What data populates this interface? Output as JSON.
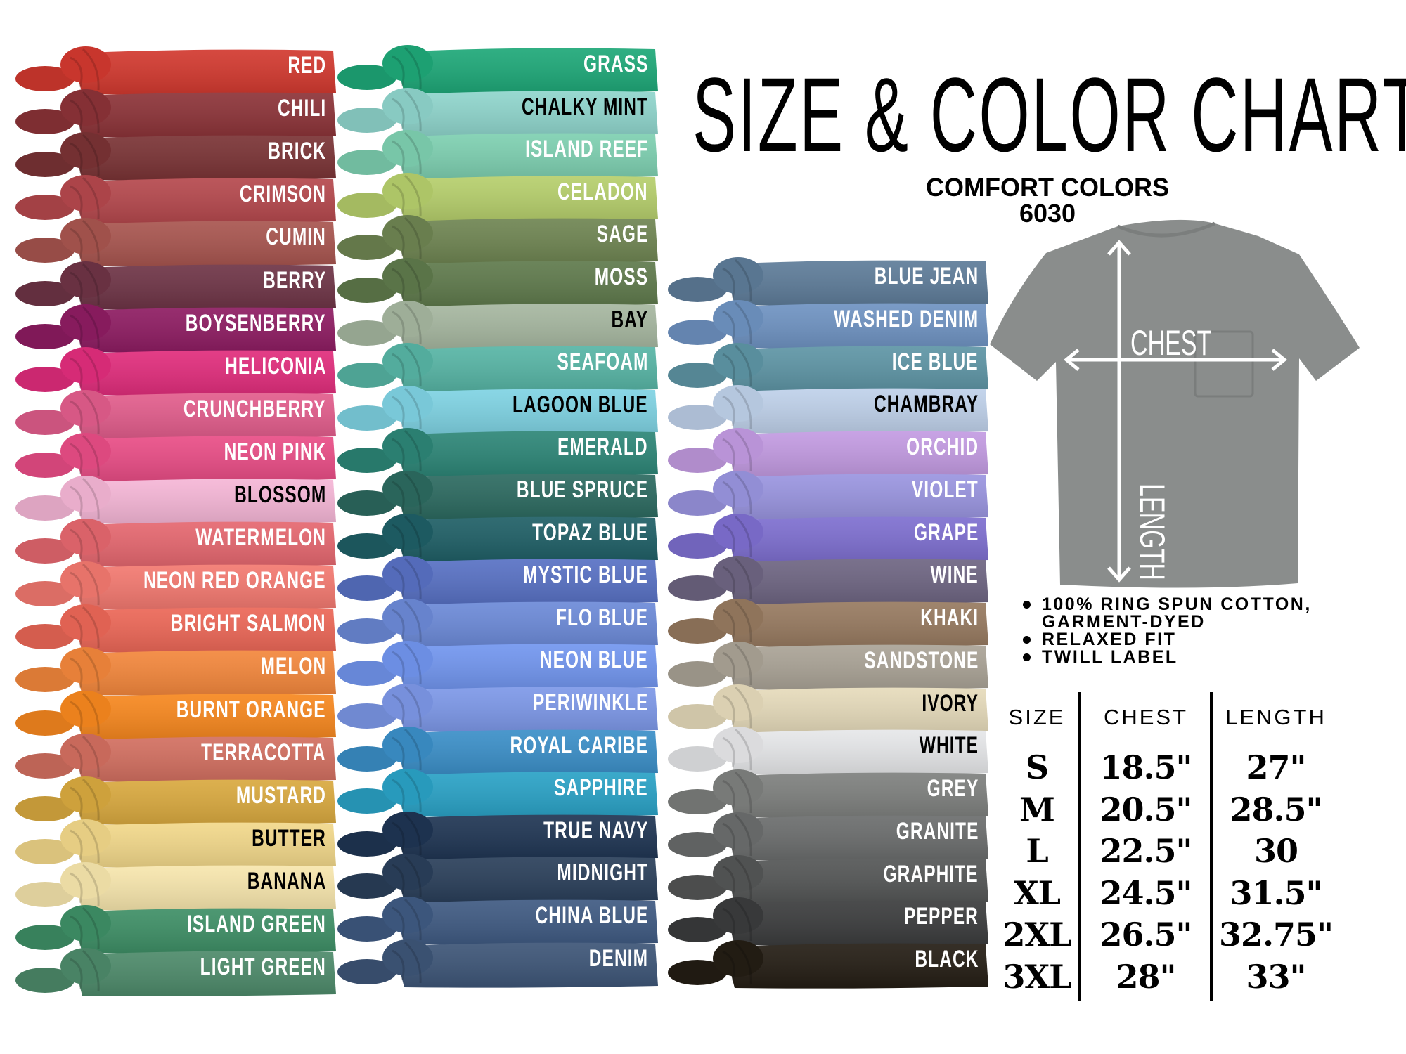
{
  "title": "SIZE & COLOR CHART",
  "brand": "COMFORT COLORS",
  "model": "6030",
  "shirt": {
    "chest_label": "CHEST",
    "length_label": "LENGTH",
    "color": "#8a8d8c"
  },
  "features": [
    "100% RING SPUN COTTON,",
    "GARMENT-DYED",
    "RELAXED FIT",
    "TWILL LABEL"
  ],
  "size_table": {
    "headers": [
      "SIZE",
      "CHEST",
      "LENGTH"
    ],
    "rows": [
      [
        "S",
        "18.5\"",
        "27\""
      ],
      [
        "M",
        "20.5\"",
        "28.5\""
      ],
      [
        "L",
        "22.5\"",
        "30"
      ],
      [
        "XL",
        "24.5\"",
        "31.5\""
      ],
      [
        "2XL",
        "26.5\"",
        "32.75\""
      ],
      [
        "3XL",
        "28\"",
        "33\""
      ]
    ]
  },
  "columns": [
    [
      {
        "name": "RED",
        "color": "#d2392f",
        "text": "#ffffff"
      },
      {
        "name": "CHILI",
        "color": "#8c3338",
        "text": "#ffffff"
      },
      {
        "name": "BRICK",
        "color": "#7a3335",
        "text": "#ffffff"
      },
      {
        "name": "CRIMSON",
        "color": "#b5484d",
        "text": "#ffffff"
      },
      {
        "name": "CUMIN",
        "color": "#a8554f",
        "text": "#ffffff"
      },
      {
        "name": "BERRY",
        "color": "#6e3446",
        "text": "#ffffff"
      },
      {
        "name": "BOYSENBERRY",
        "color": "#8e1c62",
        "text": "#ffffff"
      },
      {
        "name": "HELICONIA",
        "color": "#e12d7c",
        "text": "#ffffff"
      },
      {
        "name": "CRUNCHBERRY",
        "color": "#e25d8c",
        "text": "#ffffff"
      },
      {
        "name": "NEON PINK",
        "color": "#e94d86",
        "text": "#ffffff"
      },
      {
        "name": "BLOSSOM",
        "color": "#f5b6d6",
        "text": "#000000"
      },
      {
        "name": "WATERMELON",
        "color": "#e5676f",
        "text": "#ffffff"
      },
      {
        "name": "NEON RED ORANGE",
        "color": "#f37970",
        "text": "#ffffff"
      },
      {
        "name": "BRIGHT SALMON",
        "color": "#ec6757",
        "text": "#ffffff"
      },
      {
        "name": "MELON",
        "color": "#f3873c",
        "text": "#ffffff"
      },
      {
        "name": "BURNT ORANGE",
        "color": "#f7881f",
        "text": "#ffffff"
      },
      {
        "name": "TERRACOTTA",
        "color": "#d26f60",
        "text": "#ffffff"
      },
      {
        "name": "MUSTARD",
        "color": "#d9a93f",
        "text": "#ffffff"
      },
      {
        "name": "BUTTER",
        "color": "#f2d88a",
        "text": "#000000"
      },
      {
        "name": "BANANA",
        "color": "#f7e6ad",
        "text": "#000000"
      },
      {
        "name": "ISLAND GREEN",
        "color": "#3e8f66",
        "text": "#ffffff"
      },
      {
        "name": "LIGHT GREEN",
        "color": "#4d8a6a",
        "text": "#ffffff"
      }
    ],
    [
      {
        "name": "GRASS",
        "color": "#1ea878",
        "text": "#ffffff"
      },
      {
        "name": "CHALKY MINT",
        "color": "#8fd5cc",
        "text": "#000000"
      },
      {
        "name": "ISLAND REEF",
        "color": "#7ed0b1",
        "text": "#ffffff"
      },
      {
        "name": "CELADON",
        "color": "#b6cf6c",
        "text": "#ffffff"
      },
      {
        "name": "SAGE",
        "color": "#6f8552",
        "text": "#ffffff"
      },
      {
        "name": "MOSS",
        "color": "#5f7a4c",
        "text": "#ffffff"
      },
      {
        "name": "BAY",
        "color": "#a6b7a0",
        "text": "#000000"
      },
      {
        "name": "SEAFOAM",
        "color": "#57b5a5",
        "text": "#ffffff"
      },
      {
        "name": "LAGOON BLUE",
        "color": "#7fd3e3",
        "text": "#000000"
      },
      {
        "name": "EMERALD",
        "color": "#2d8677",
        "text": "#ffffff"
      },
      {
        "name": "BLUE SPRUCE",
        "color": "#2c6a60",
        "text": "#ffffff"
      },
      {
        "name": "TOPAZ BLUE",
        "color": "#1f5f66",
        "text": "#ffffff"
      },
      {
        "name": "MYSTIC BLUE",
        "color": "#5871c4",
        "text": "#ffffff"
      },
      {
        "name": "FLO BLUE",
        "color": "#6c8ad8",
        "text": "#ffffff"
      },
      {
        "name": "NEON BLUE",
        "color": "#7296ef",
        "text": "#ffffff"
      },
      {
        "name": "PERIWINKLE",
        "color": "#7d98e8",
        "text": "#ffffff"
      },
      {
        "name": "ROYAL CARIBE",
        "color": "#3b8fc8",
        "text": "#ffffff"
      },
      {
        "name": "SAPPHIRE",
        "color": "#2aa2c6",
        "text": "#ffffff"
      },
      {
        "name": "TRUE NAVY",
        "color": "#1f3553",
        "text": "#ffffff"
      },
      {
        "name": "MIDNIGHT",
        "color": "#2a3f5a",
        "text": "#ffffff"
      },
      {
        "name": "CHINA BLUE",
        "color": "#3f5a82",
        "text": "#ffffff"
      },
      {
        "name": "DENIM",
        "color": "#3d5577",
        "text": "#ffffff"
      }
    ],
    [
      {
        "name": "BLUE JEAN",
        "color": "#5e7c99",
        "text": "#ffffff"
      },
      {
        "name": "WASHED DENIM",
        "color": "#6f93c2",
        "text": "#ffffff"
      },
      {
        "name": "ICE BLUE",
        "color": "#5e95a5",
        "text": "#ffffff"
      },
      {
        "name": "CHAMBRAY",
        "color": "#bfd1ea",
        "text": "#000000"
      },
      {
        "name": "ORCHID",
        "color": "#c39be2",
        "text": "#ffffff"
      },
      {
        "name": "VIOLET",
        "color": "#9a95e0",
        "text": "#ffffff"
      },
      {
        "name": "GRAPE",
        "color": "#7e6fd0",
        "text": "#ffffff"
      },
      {
        "name": "WINE",
        "color": "#6e6582",
        "text": "#ffffff"
      },
      {
        "name": "KHAKI",
        "color": "#977a60",
        "text": "#ffffff"
      },
      {
        "name": "SANDSTONE",
        "color": "#aaa396",
        "text": "#ffffff"
      },
      {
        "name": "IVORY",
        "color": "#e6dbbb",
        "text": "#000000"
      },
      {
        "name": "WHITE",
        "color": "#e6e7e9",
        "text": "#000000"
      },
      {
        "name": "GREY",
        "color": "#7e807e",
        "text": "#ffffff"
      },
      {
        "name": "GRANITE",
        "color": "#6b6d6d",
        "text": "#ffffff"
      },
      {
        "name": "GRAPHITE",
        "color": "#545656",
        "text": "#ffffff"
      },
      {
        "name": "PEPPER",
        "color": "#3b3c3d",
        "text": "#ffffff"
      },
      {
        "name": "BLACK",
        "color": "#241d14",
        "text": "#ffffff"
      }
    ]
  ]
}
